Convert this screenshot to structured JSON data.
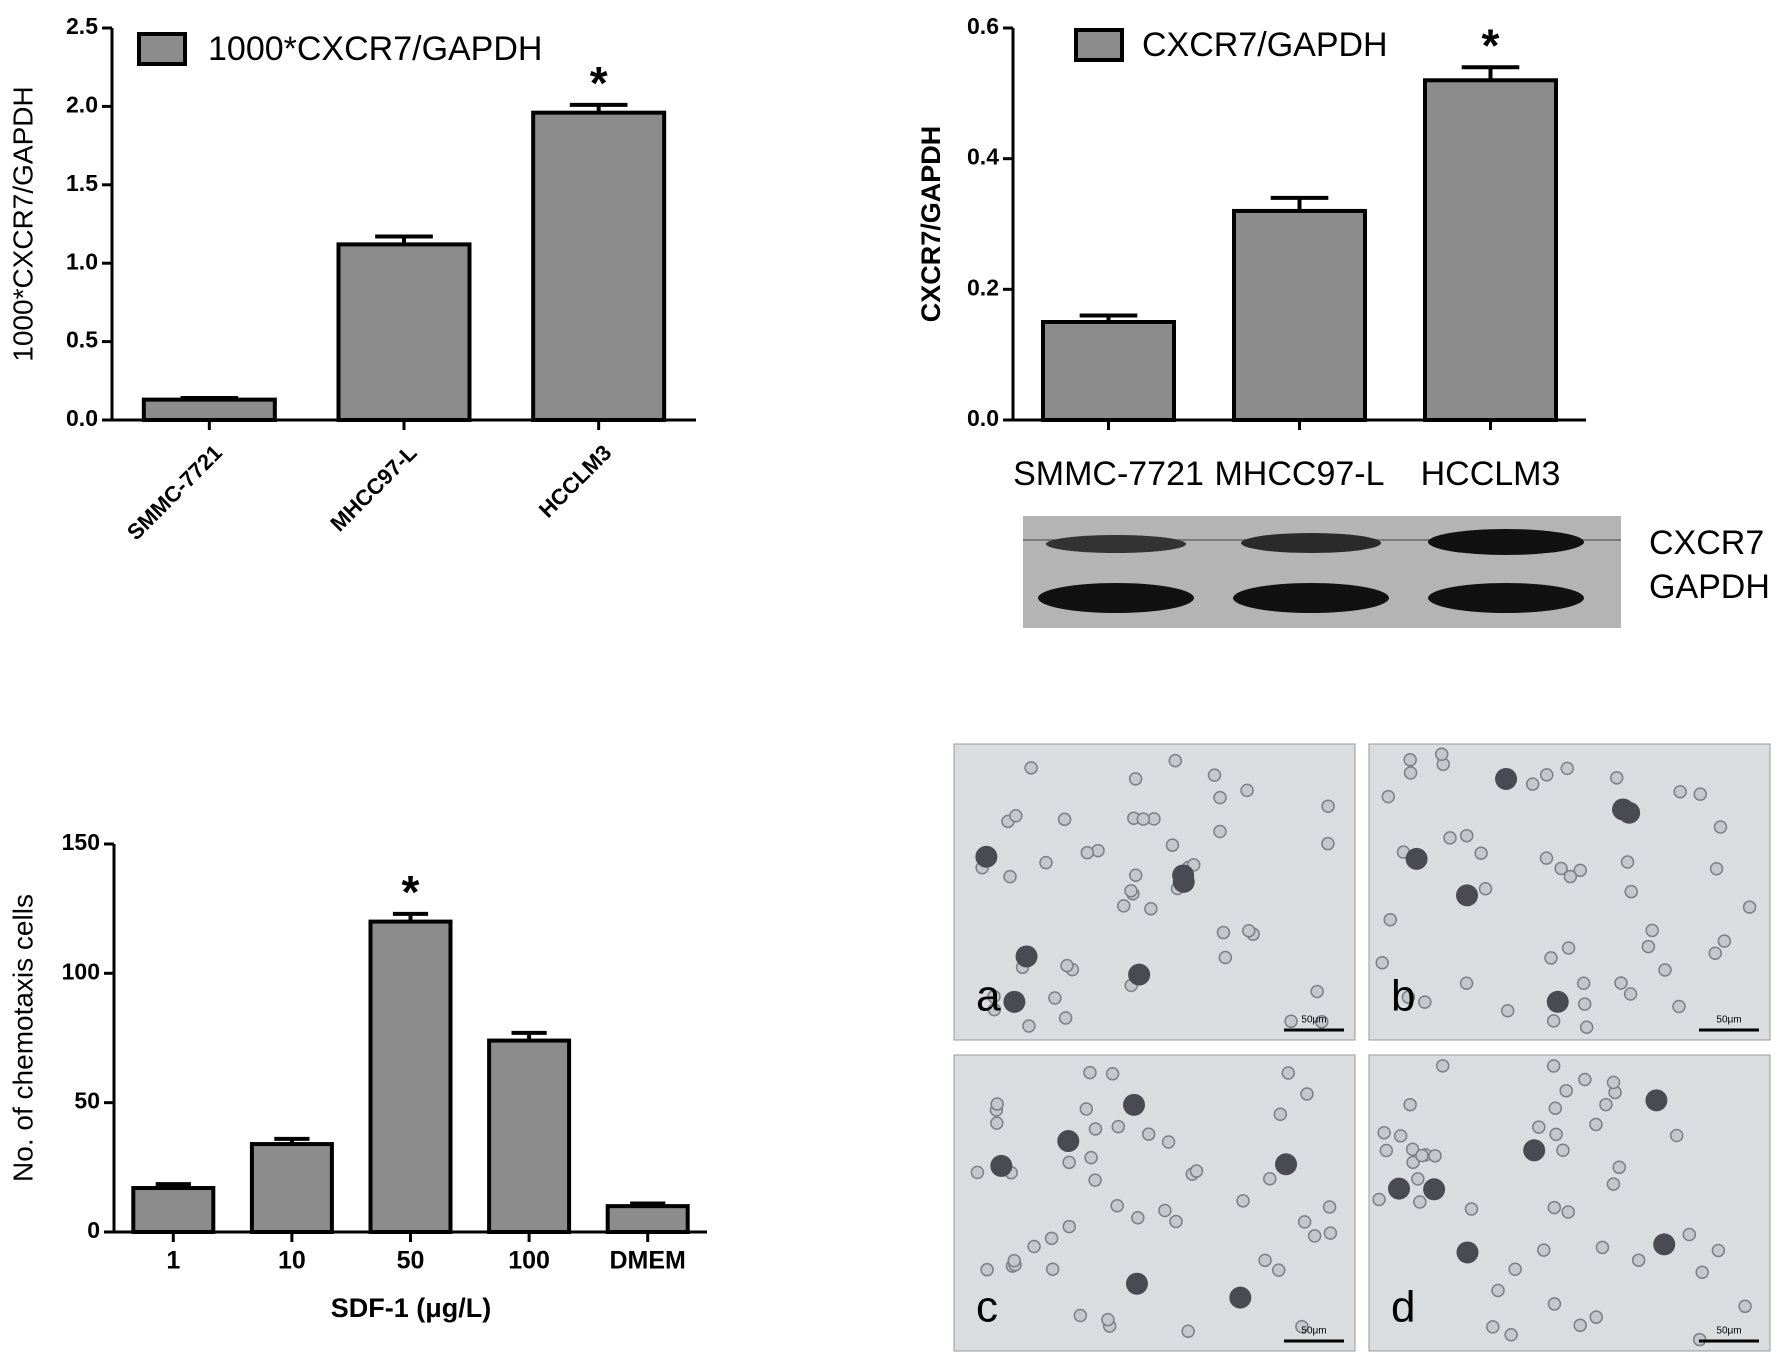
{
  "chart_data": [
    {
      "type": "bar",
      "ylabel": "1000*CXCR7/GAPDH",
      "categories": [
        "SMMC-7721",
        "MHCC97-L",
        "HCCLM3"
      ],
      "series": [
        {
          "name": "1000*CXCR7/GAPDH",
          "color": "#8c8c8c",
          "values": [
            0.13,
            1.12,
            1.96
          ],
          "errors": [
            0.01,
            0.05,
            0.05
          ]
        }
      ],
      "ylim": [
        0,
        2.5
      ],
      "yticks": [
        {
          "value": 0,
          "label": "0.0"
        },
        0.5,
        {
          "value": 1,
          "label": "1.0"
        },
        1.5,
        {
          "value": 2,
          "label": "2.0"
        },
        2.5
      ],
      "xtick_rotation": -45,
      "annotations": [
        {
          "category": "HCCLM3",
          "text": "*"
        }
      ]
    },
    {
      "type": "bar",
      "ylabel": "CXCR7/GAPDH",
      "categories": [
        "SMMC-7721",
        "MHCC97-L",
        "HCCLM3"
      ],
      "series": [
        {
          "name": "CXCR7/GAPDH",
          "color": "#8c8c8c",
          "values": [
            0.15,
            0.32,
            0.52
          ],
          "errors": [
            0.01,
            0.02,
            0.02
          ]
        }
      ],
      "ylim": [
        0,
        0.6
      ],
      "yticks": [
        {
          "value": 0,
          "label": "0.0"
        },
        0.2,
        0.4,
        0.6
      ],
      "annotations": [
        {
          "category": "HCCLM3",
          "text": "*"
        }
      ]
    },
    {
      "type": "bar",
      "xlabel": "SDF-1 (μg/L)",
      "ylabel": "No. of chemotaxis cells",
      "categories": [
        "1",
        "10",
        "50",
        "100",
        "DMEM"
      ],
      "series": [
        {
          "color": "#8c8c8c",
          "values": [
            17,
            34,
            120,
            74,
            10
          ],
          "errors": [
            1.5,
            2,
            3,
            3,
            1
          ]
        }
      ],
      "ylim": [
        0,
        150
      ],
      "yticks": [
        0,
        50,
        100,
        150
      ],
      "annotations": [
        {
          "category": "50",
          "text": "*"
        }
      ]
    }
  ],
  "blot": {
    "labels": [
      "CXCR7",
      "GAPDH"
    ]
  },
  "micrographs": {
    "labels": [
      "a",
      "b",
      "c",
      "d"
    ],
    "scale_bar": "50μm"
  }
}
